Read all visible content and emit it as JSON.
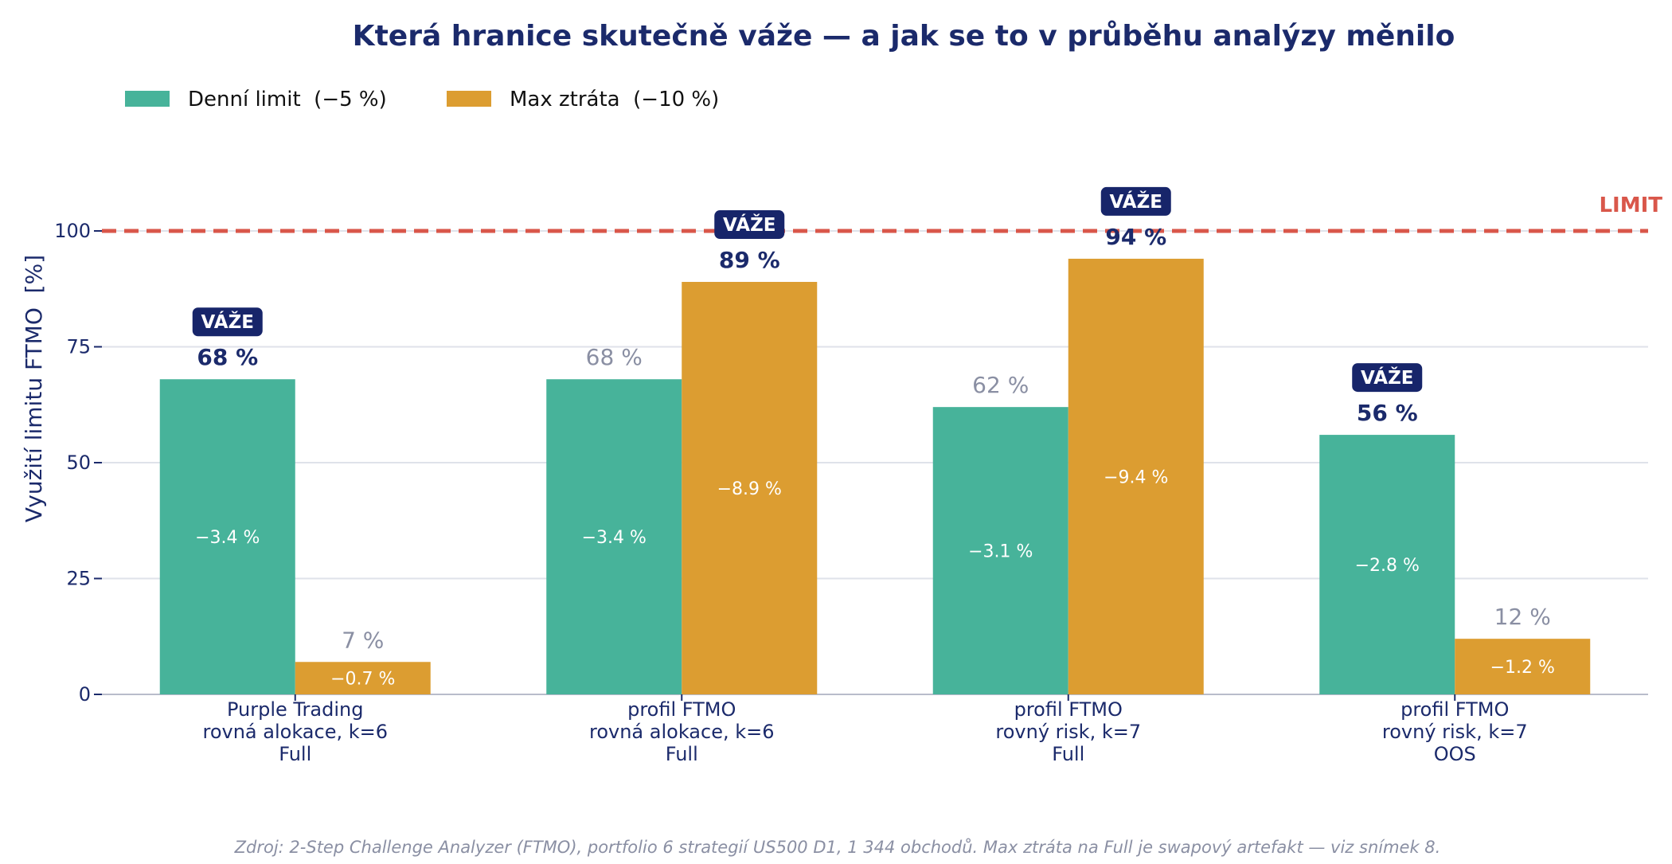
{
  "chart_data": {
    "type": "bar",
    "title": "Která hranice skutečně váže — a jak se to v průběhu analýzy měnilo",
    "ylabel": "Využití limitu FTMO  [%]",
    "xlabel": "",
    "ylim": [
      0,
      110
    ],
    "yticks": [
      0,
      25,
      50,
      75,
      100
    ],
    "grid": true,
    "legend_placement": "top-left",
    "categories": [
      [
        "Purple Trading",
        "rovná alokace, k=6",
        "Full"
      ],
      [
        "profil FTMO",
        "rovná alokace, k=6",
        "Full"
      ],
      [
        "profil FTMO",
        "rovný risk, k=7",
        "Full"
      ],
      [
        "profil FTMO",
        "rovný risk, k=7",
        "OOS"
      ]
    ],
    "series": [
      {
        "name": "Denní limit  (−5 %)",
        "color": "#47b39a",
        "values": [
          68,
          68,
          62,
          56
        ],
        "value_labels": [
          "68 %",
          "68 %",
          "62 %",
          "56 %"
        ],
        "inner_labels": [
          "−3.4 %",
          "−3.4 %",
          "−3.1 %",
          "−2.8 %"
        ],
        "binding": [
          true,
          false,
          false,
          true
        ]
      },
      {
        "name": "Max ztráta  (−10 %)",
        "color": "#dc9d31",
        "values": [
          7,
          89,
          94,
          12
        ],
        "value_labels": [
          "7 %",
          "89 %",
          "94 %",
          "12 %"
        ],
        "inner_labels": [
          "−0.7 %",
          "−8.9 %",
          "−9.4 %",
          "−1.2 %"
        ],
        "binding": [
          false,
          true,
          true,
          false
        ]
      }
    ],
    "badge_label": "VÁŽE",
    "limit_line": {
      "value": 100,
      "label": "LIMIT",
      "color": "#d9574a"
    },
    "source": "Zdroj: 2-Step Challenge Analyzer (FTMO), portfolio 6 strategií US500 D1, 1 344 obchodů. Max ztráta na Full je swapový artefakt — viz snímek 8."
  }
}
